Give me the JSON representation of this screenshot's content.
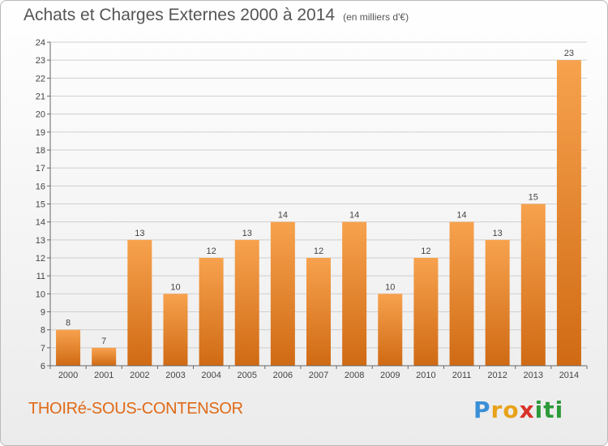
{
  "header": {
    "title": "Achats et Charges Externes 2000 à 2014",
    "subtitle": "(en milliers d'€)"
  },
  "footer": {
    "commune": "THOIRé-SOUS-CONTENSOR",
    "logo_letters": [
      "P",
      "r",
      "o",
      "x",
      "i",
      "t",
      "i"
    ],
    "logo_colors": [
      "#3a8fd6",
      "#e8a21a",
      "#e8a21a",
      "#d8322a",
      "#2d9a3a",
      "#2d9a3a",
      "#2d9a3a"
    ]
  },
  "colors": {
    "bar_top": "#f7a24e",
    "bar_bottom": "#d06a14",
    "grid": "#cfcfcf",
    "axis": "#666666"
  },
  "chart_data": {
    "type": "bar",
    "title": "Achats et Charges Externes 2000 à 2014",
    "subtitle": "(en milliers d'€)",
    "categories": [
      "2000",
      "2001",
      "2002",
      "2003",
      "2004",
      "2005",
      "2006",
      "2007",
      "2008",
      "2009",
      "2010",
      "2011",
      "2012",
      "2013",
      "2014"
    ],
    "values": [
      8,
      7,
      13,
      10,
      12,
      13,
      14,
      12,
      14,
      10,
      12,
      14,
      13,
      15,
      23
    ],
    "data_labels": [
      "8",
      "7",
      "13",
      "10",
      "12",
      "13",
      "14",
      "12",
      "14",
      "10",
      "12",
      "14",
      "13",
      "15",
      "23"
    ],
    "ylim": [
      6,
      24
    ],
    "ytick_values": [
      6,
      7,
      8,
      9,
      10,
      11,
      12,
      13,
      14,
      15,
      16,
      17,
      18,
      19,
      20,
      21,
      22,
      23,
      24
    ],
    "ytick_labels": [
      "6",
      "7",
      "8",
      "9",
      "10",
      "11",
      "12",
      "13",
      "14",
      "15",
      "16",
      "17",
      "18",
      "19",
      "20",
      "21",
      "22",
      "23",
      "24"
    ],
    "grid": true,
    "legend": false
  }
}
